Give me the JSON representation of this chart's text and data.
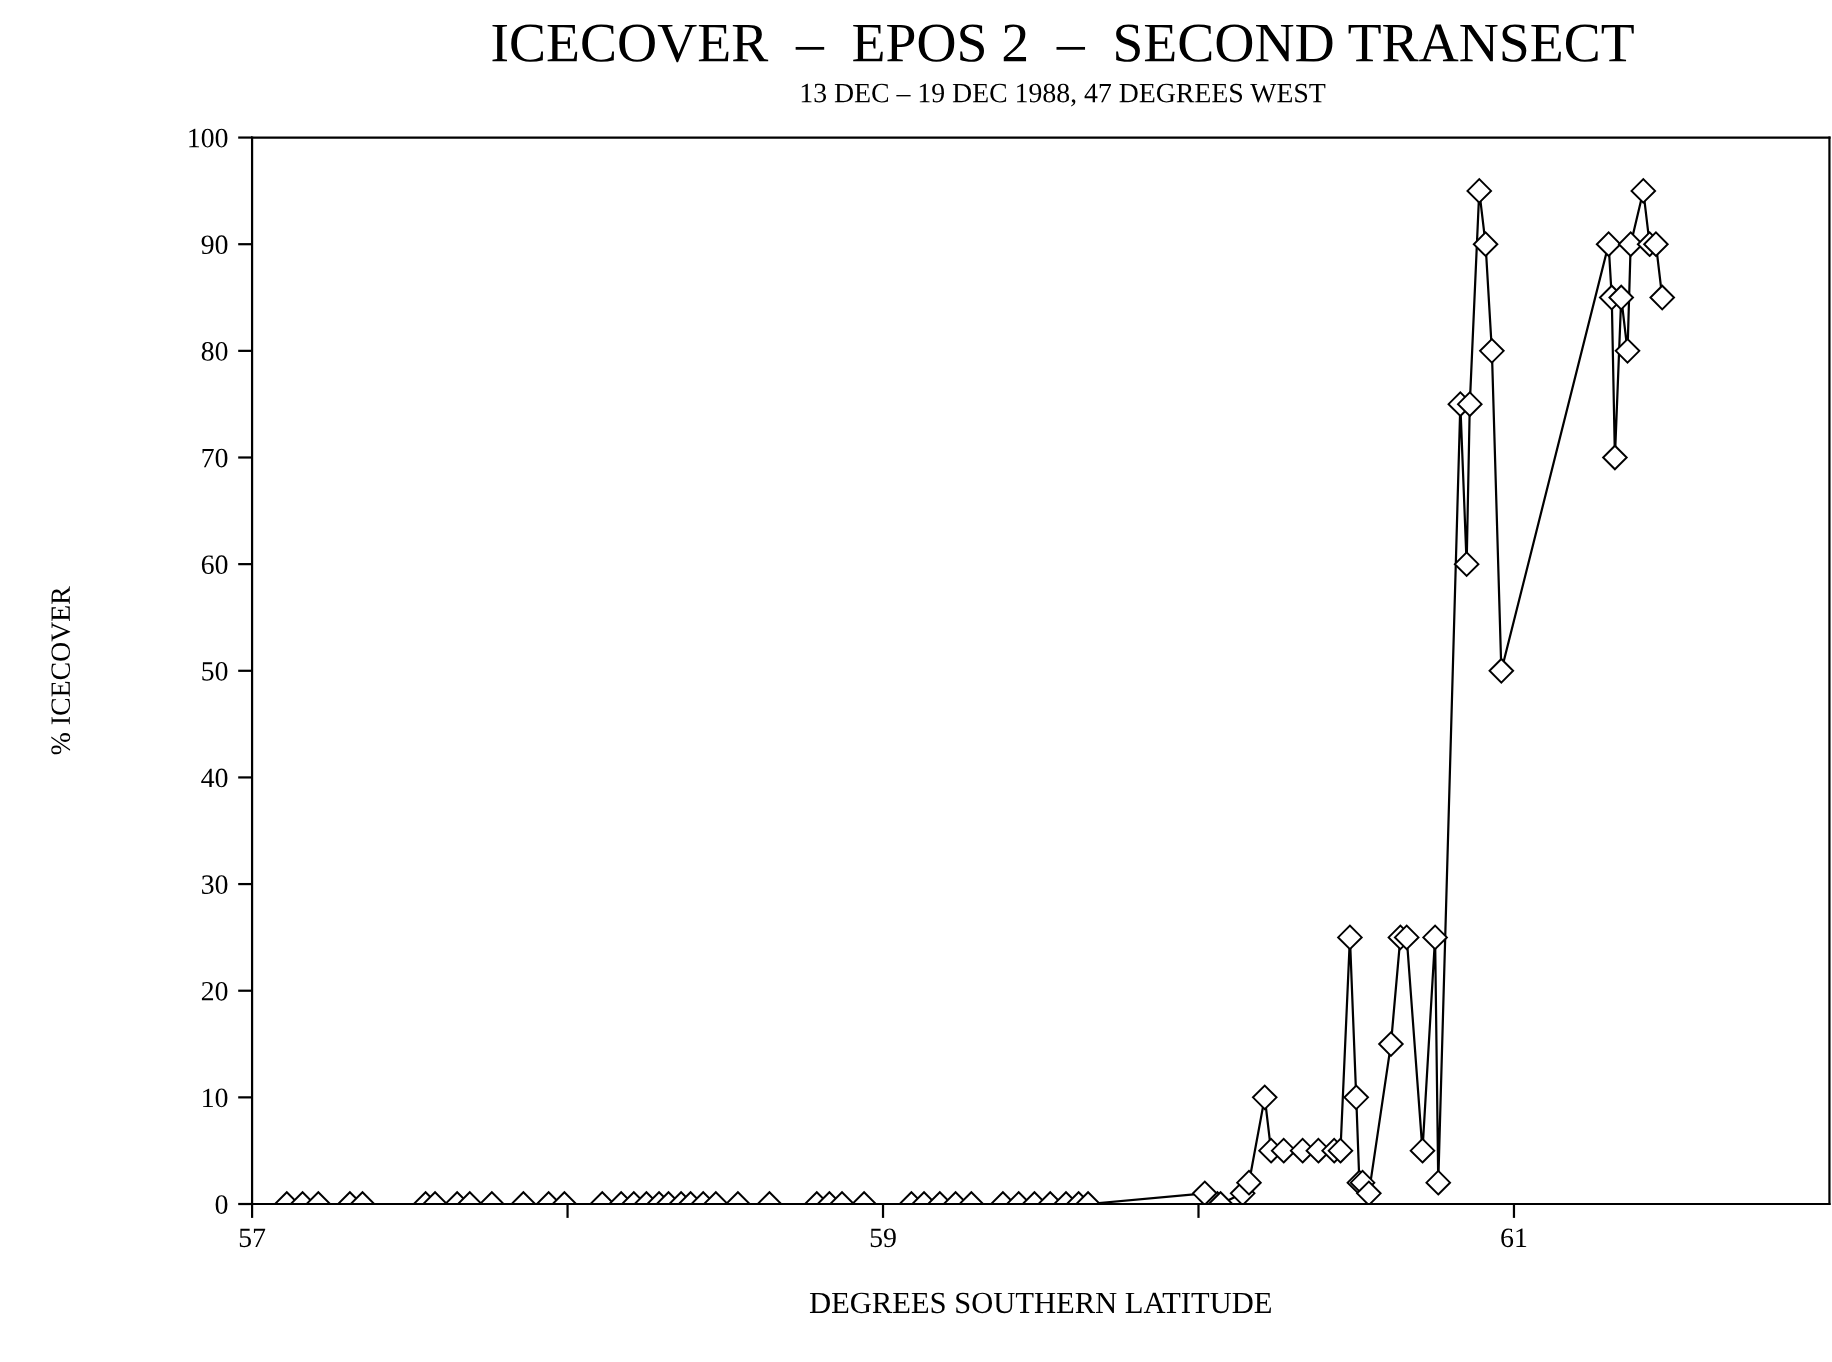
{
  "chart_data": {
    "type": "line",
    "title": "ICECOVER  –  EPOS 2  –  SECOND TRANSECT",
    "subtitle": "13 DEC – 19 DEC 1988, 47 DEGREES WEST",
    "xlabel": "DEGREES SOUTHERN LATITUDE",
    "ylabel": "% ICECOVER",
    "marker": "diamond",
    "line_style": "solid",
    "grid": false,
    "legend": false,
    "xlim": [
      57,
      62
    ],
    "xticks": [
      57,
      {
        "value": 58,
        "label": null
      },
      59,
      {
        "value": 60,
        "label": null
      },
      61
    ],
    "ylim": [
      0,
      100
    ],
    "yticks": [
      0,
      10,
      20,
      30,
      40,
      50,
      60,
      70,
      80,
      90,
      100
    ],
    "series": [
      {
        "color": "#000000",
        "x": [
          57.11,
          57.16,
          57.21,
          57.31,
          57.35,
          57.55,
          57.58,
          57.65,
          57.69,
          57.76,
          57.86,
          57.94,
          57.99,
          58.11,
          58.17,
          58.21,
          58.25,
          58.29,
          58.32,
          58.36,
          58.39,
          58.43,
          58.47,
          58.54,
          58.64,
          58.79,
          58.83,
          58.87,
          58.94,
          59.09,
          59.13,
          59.18,
          59.23,
          59.28,
          59.38,
          59.43,
          59.48,
          59.53,
          59.58,
          59.62,
          59.65,
          60.02,
          60.06,
          60.07,
          60.14,
          60.16,
          60.21,
          60.23,
          60.27,
          60.33,
          60.38,
          60.43,
          60.45,
          60.48,
          60.5,
          60.51,
          60.52,
          60.54,
          60.61,
          60.64,
          60.66,
          60.71,
          60.75,
          60.76,
          60.83,
          60.85,
          60.86,
          60.89,
          60.91,
          60.93,
          60.96,
          61.3,
          61.31,
          61.32,
          61.34,
          61.36,
          61.37,
          61.41,
          61.43,
          61.45,
          61.47
        ],
        "values": [
          0,
          0,
          0,
          0,
          0,
          0,
          0,
          0,
          0,
          0,
          0,
          0,
          0,
          0,
          0,
          0,
          0,
          0,
          0,
          0,
          0,
          0,
          0,
          0,
          0,
          0,
          0,
          0,
          0,
          0,
          0,
          0,
          0,
          0,
          0,
          0,
          0,
          0,
          0,
          0,
          0,
          1,
          0,
          0,
          1,
          2,
          10,
          5,
          5,
          5,
          5,
          5,
          5,
          25,
          10,
          2,
          2,
          1,
          15,
          25,
          25,
          5,
          25,
          2,
          75,
          60,
          75,
          95,
          90,
          80,
          50,
          90,
          85,
          70,
          85,
          80,
          90,
          95,
          90,
          90,
          85
        ]
      }
    ]
  }
}
